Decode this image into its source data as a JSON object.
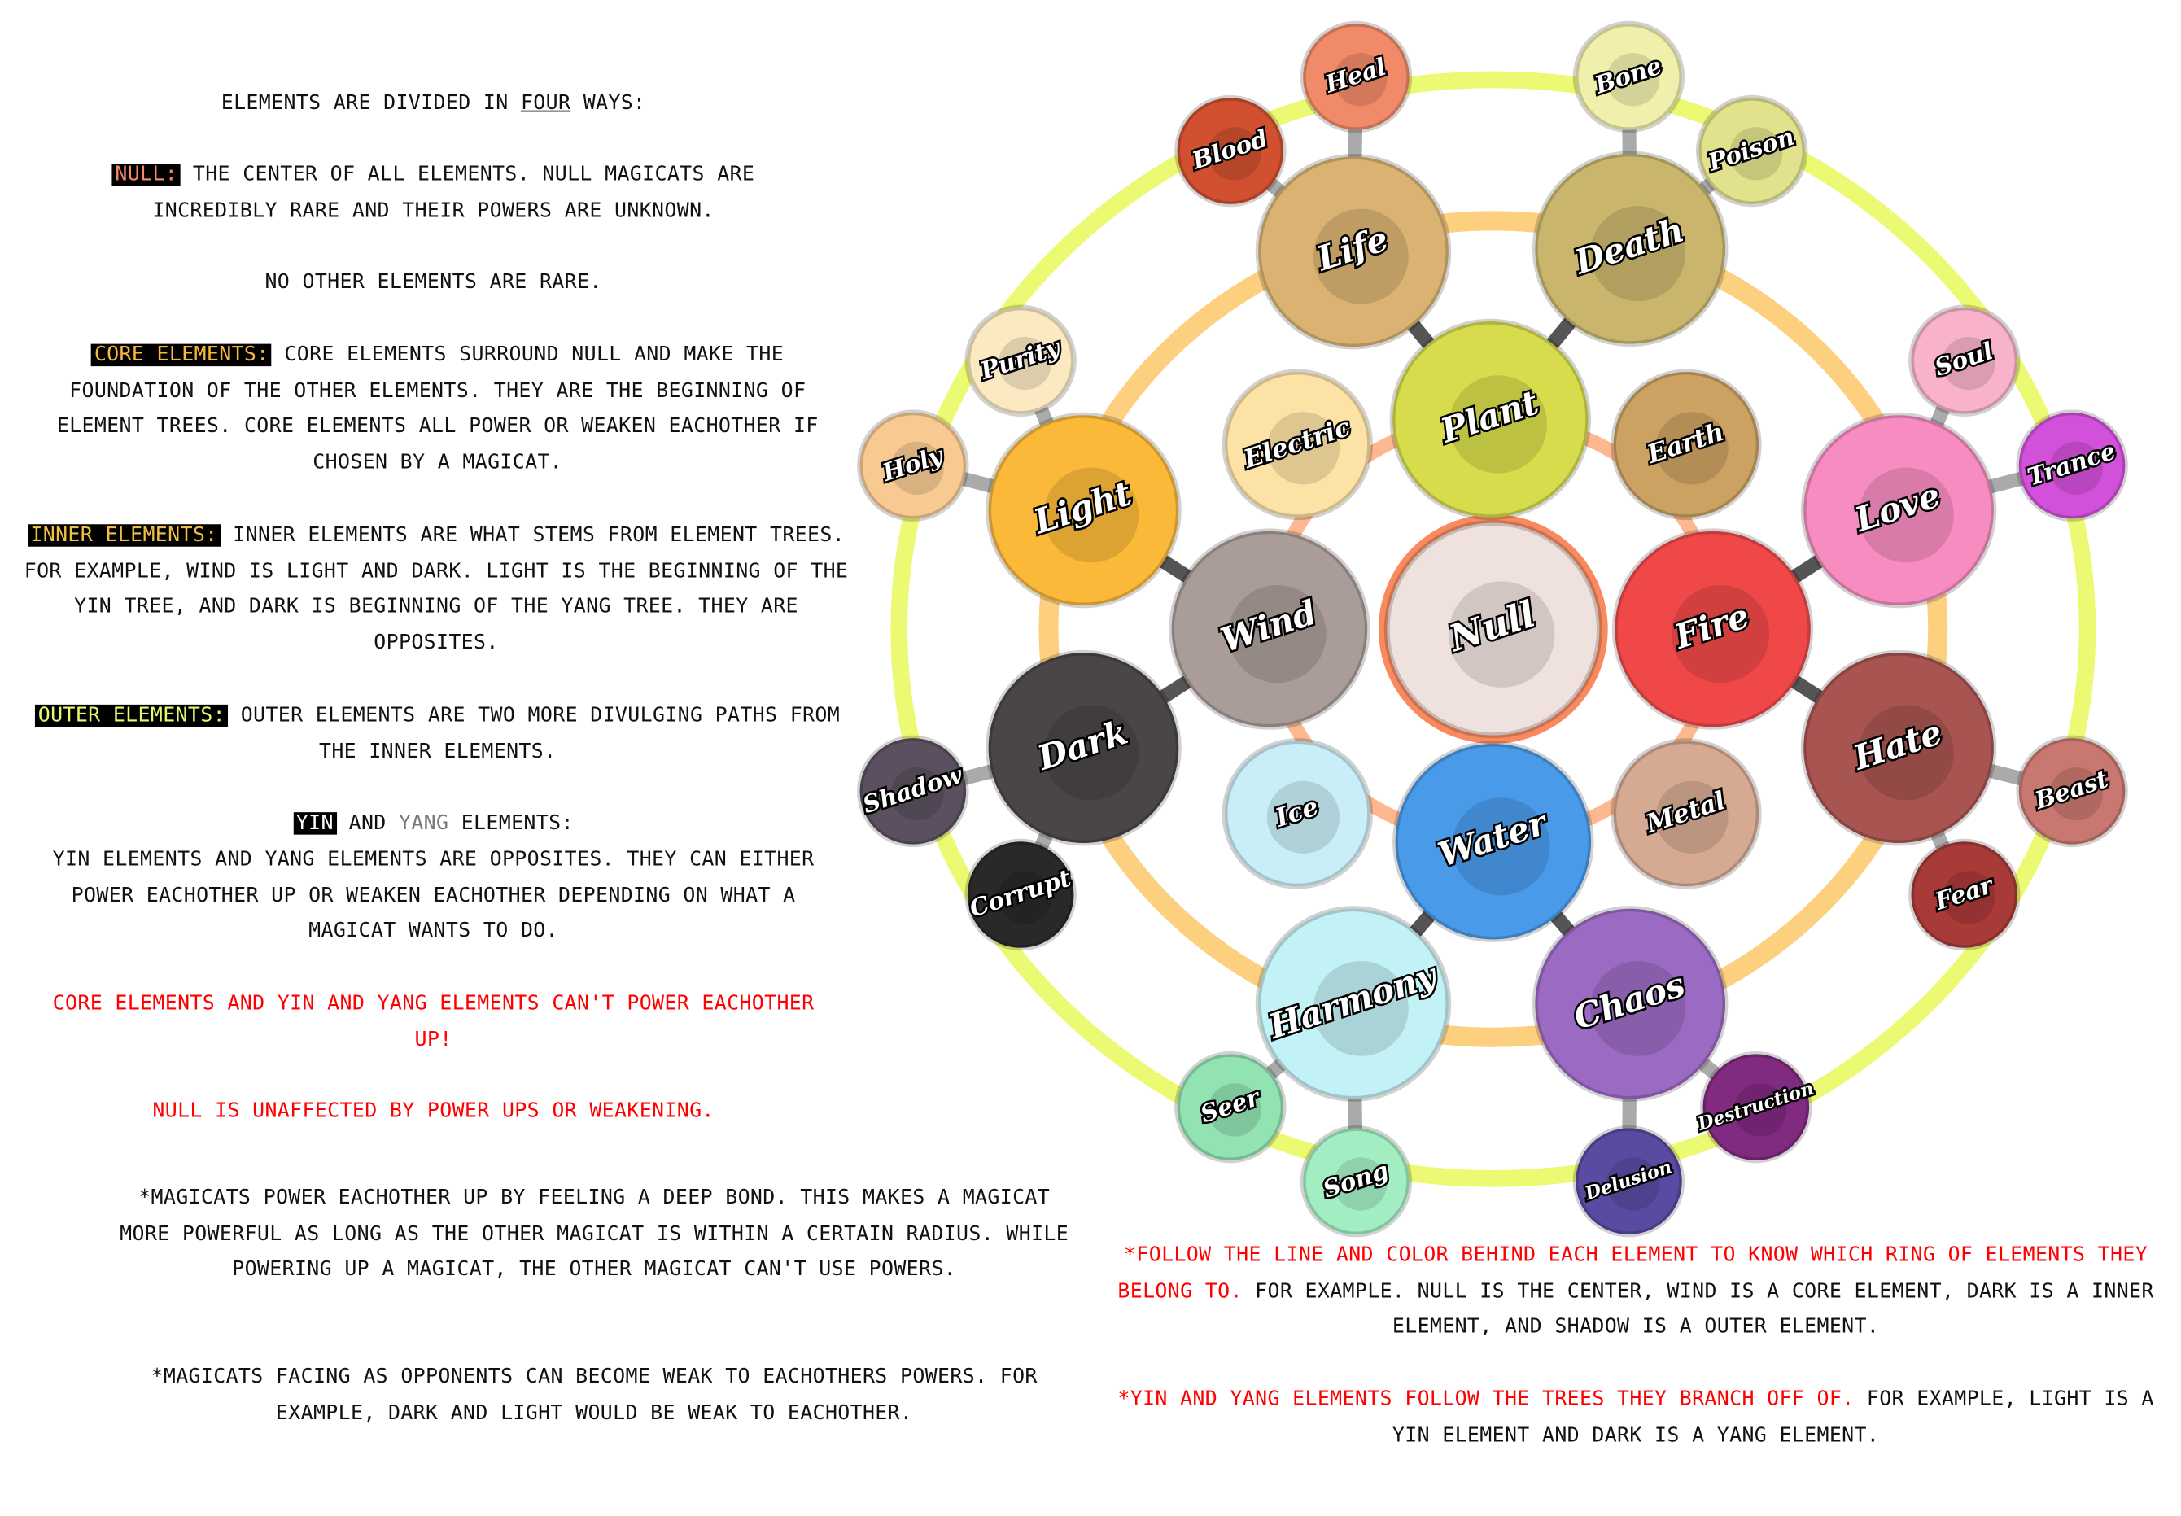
{
  "left_text": {
    "heading_pre": "Elements are divided in ",
    "heading_emph": "four",
    "heading_post": " ways:",
    "null_tag": "NULL:",
    "null_text": " the center of all elements. Null magicats are incredibly rare and their powers are unknown.",
    "rare": "No other elements are rare.",
    "core_tag": "CORE ELEMENTS:",
    "core_text": " Core elements surround null and make the foundation of the other elements. They are the beginning of element trees. Core elements all power or weaken eachother if chosen by a magicat.",
    "inner_tag": "INNER ELEMENTS:",
    "inner_text": " Inner elements are what stems from element trees. For example, wind is light and dark. Light is the beginning of the yin tree, and dark is beginning of the yang tree. They are opposites.",
    "outer_tag": "OUTER ELEMENTS:",
    "outer_text": " Outer elements are two more divulging paths from the inner elements.",
    "yin_tag": "YIN",
    "yin_and": " and ",
    "yang_word": "YANG",
    "yin_post": " elements:",
    "yin_text": "Yin elements and yang elements are opposites. They can either power eachother up or weaken eachother depending on what a magicat wants to do.",
    "warn1": "Core elements and yin and yang elements can't power eachother up!",
    "warn2": "Null is unaffected by power ups or weakening.",
    "note1": "*Magicats power eachother up by feeling a deep bond. This makes a magicat more powerful as long as the other magicat is within a certain radius. While powering up a magicat, the other magicat can't use powers.",
    "note2": "*Magicats facing as opponents can become weak to eachothers powers. For example, dark and light would be weak to eachother."
  },
  "right_text": {
    "note1_red": "*Follow the line and color behind each element to know which ring of elements they belong to.",
    "note1_black": " For example. Null is the center, wind is a core element, dark is a inner element, and shadow is a outer element.",
    "note2_red": "*Yin and yang elements follow the trees they branch off of.",
    "note2_black": " For example, light is a yin element and dark is a yang element."
  },
  "colors": {
    "null": "#f98a5f",
    "core": "#fbb93a",
    "inner": "#f0c040",
    "outer": "#e8f870",
    "yang": "#777777",
    "ring_outer": "#ebfa72",
    "ring_middle": "#fdd080",
    "ring_inner": "#fdb890"
  },
  "diagram": {
    "null": {
      "label": "Null",
      "color": "#efe2de"
    },
    "core": [
      {
        "label": "Plant",
        "color": "#d6dc4c"
      },
      {
        "label": "Fire",
        "color": "#f04848"
      },
      {
        "label": "Water",
        "color": "#4a9aea"
      },
      {
        "label": "Wind",
        "color": "#aa9c98"
      }
    ],
    "inner": [
      {
        "label": "Electric",
        "color": "#fde2a6"
      },
      {
        "label": "Earth",
        "color": "#cba262"
      },
      {
        "label": "Metal",
        "color": "#d6aa92"
      },
      {
        "label": "Ice",
        "color": "#caeef8"
      }
    ],
    "middle": [
      {
        "label": "Life",
        "color": "#dab272"
      },
      {
        "label": "Death",
        "color": "#c9b66c"
      },
      {
        "label": "Love",
        "color": "#f68cc0"
      },
      {
        "label": "Hate",
        "color": "#a85450"
      },
      {
        "label": "Chaos",
        "color": "#9b6ac2"
      },
      {
        "label": "Harmony",
        "color": "#c2f1f6"
      },
      {
        "label": "Dark",
        "color": "#4a4548"
      },
      {
        "label": "Light",
        "color": "#fbb93a"
      }
    ],
    "outer": [
      {
        "label": "Heal",
        "color": "#f08a68"
      },
      {
        "label": "Blood",
        "color": "#d05030"
      },
      {
        "label": "Bone",
        "color": "#f1efac"
      },
      {
        "label": "Poison",
        "color": "#e2e28c"
      },
      {
        "label": "Soul",
        "color": "#f8b2ca"
      },
      {
        "label": "Trance",
        "color": "#d250da"
      },
      {
        "label": "Beast",
        "color": "#c87870"
      },
      {
        "label": "Fear",
        "color": "#a83a38"
      },
      {
        "label": "Destruction",
        "color": "#802a80"
      },
      {
        "label": "Delusion",
        "color": "#5a4aa2"
      },
      {
        "label": "Song",
        "color": "#a2eec2"
      },
      {
        "label": "Seer",
        "color": "#92e2b2"
      },
      {
        "label": "Corrupt",
        "color": "#2a2828"
      },
      {
        "label": "Shadow",
        "color": "#5a5060"
      },
      {
        "label": "Holy",
        "color": "#f8ca92"
      },
      {
        "label": "Purity",
        "color": "#fbe9c2"
      }
    ]
  }
}
